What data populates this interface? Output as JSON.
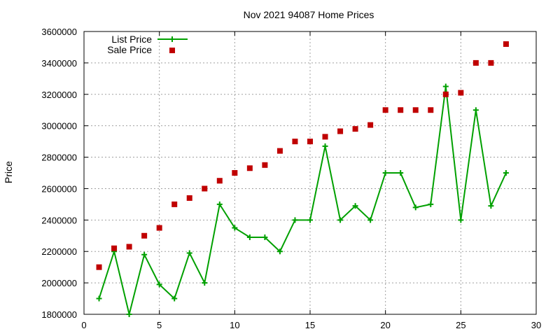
{
  "chart_data": {
    "type": "line",
    "title": "Nov 2021 94087 Home Prices",
    "ylabel": "Price",
    "xlabel": "",
    "xlim": [
      0,
      30
    ],
    "ylim": [
      1800000,
      3600000
    ],
    "x_ticks": [
      0,
      5,
      10,
      15,
      20,
      25,
      30
    ],
    "y_ticks": [
      1800000,
      2000000,
      2200000,
      2400000,
      2600000,
      2800000,
      3000000,
      3200000,
      3400000,
      3600000
    ],
    "grid": true,
    "legend_position": "top-left",
    "series": [
      {
        "name": "List Price",
        "style": "line-plus",
        "color": "#00a000",
        "x": [
          1,
          2,
          3,
          4,
          5,
          6,
          7,
          8,
          9,
          10,
          11,
          12,
          13,
          14,
          15,
          16,
          17,
          18,
          19,
          20,
          21,
          22,
          23,
          24,
          25,
          26,
          27,
          28
        ],
        "y": [
          1900000,
          2200000,
          1800000,
          2180000,
          1990000,
          1900000,
          2190000,
          2000000,
          2500000,
          2350000,
          2290000,
          2290000,
          2200000,
          2400000,
          2400000,
          2870000,
          2400000,
          2490000,
          2400000,
          2700000,
          2700000,
          2480000,
          2500000,
          3250000,
          2400000,
          3100000,
          2490000,
          2700000
        ]
      },
      {
        "name": "Sale Price",
        "style": "square-points",
        "color": "#c00000",
        "x": [
          1,
          2,
          3,
          4,
          5,
          6,
          7,
          8,
          9,
          10,
          11,
          12,
          13,
          14,
          15,
          16,
          17,
          18,
          19,
          20,
          21,
          22,
          23,
          24,
          25,
          26,
          27,
          28
        ],
        "y": [
          2100000,
          2220000,
          2230000,
          2300000,
          2350000,
          2500000,
          2540000,
          2600000,
          2650000,
          2700000,
          2730000,
          2750000,
          2840000,
          2900000,
          2900000,
          2930000,
          2965000,
          2980000,
          3005000,
          3100000,
          3100000,
          3100000,
          3100000,
          3200000,
          3210000,
          3400000,
          3400000,
          3520000
        ]
      }
    ]
  }
}
